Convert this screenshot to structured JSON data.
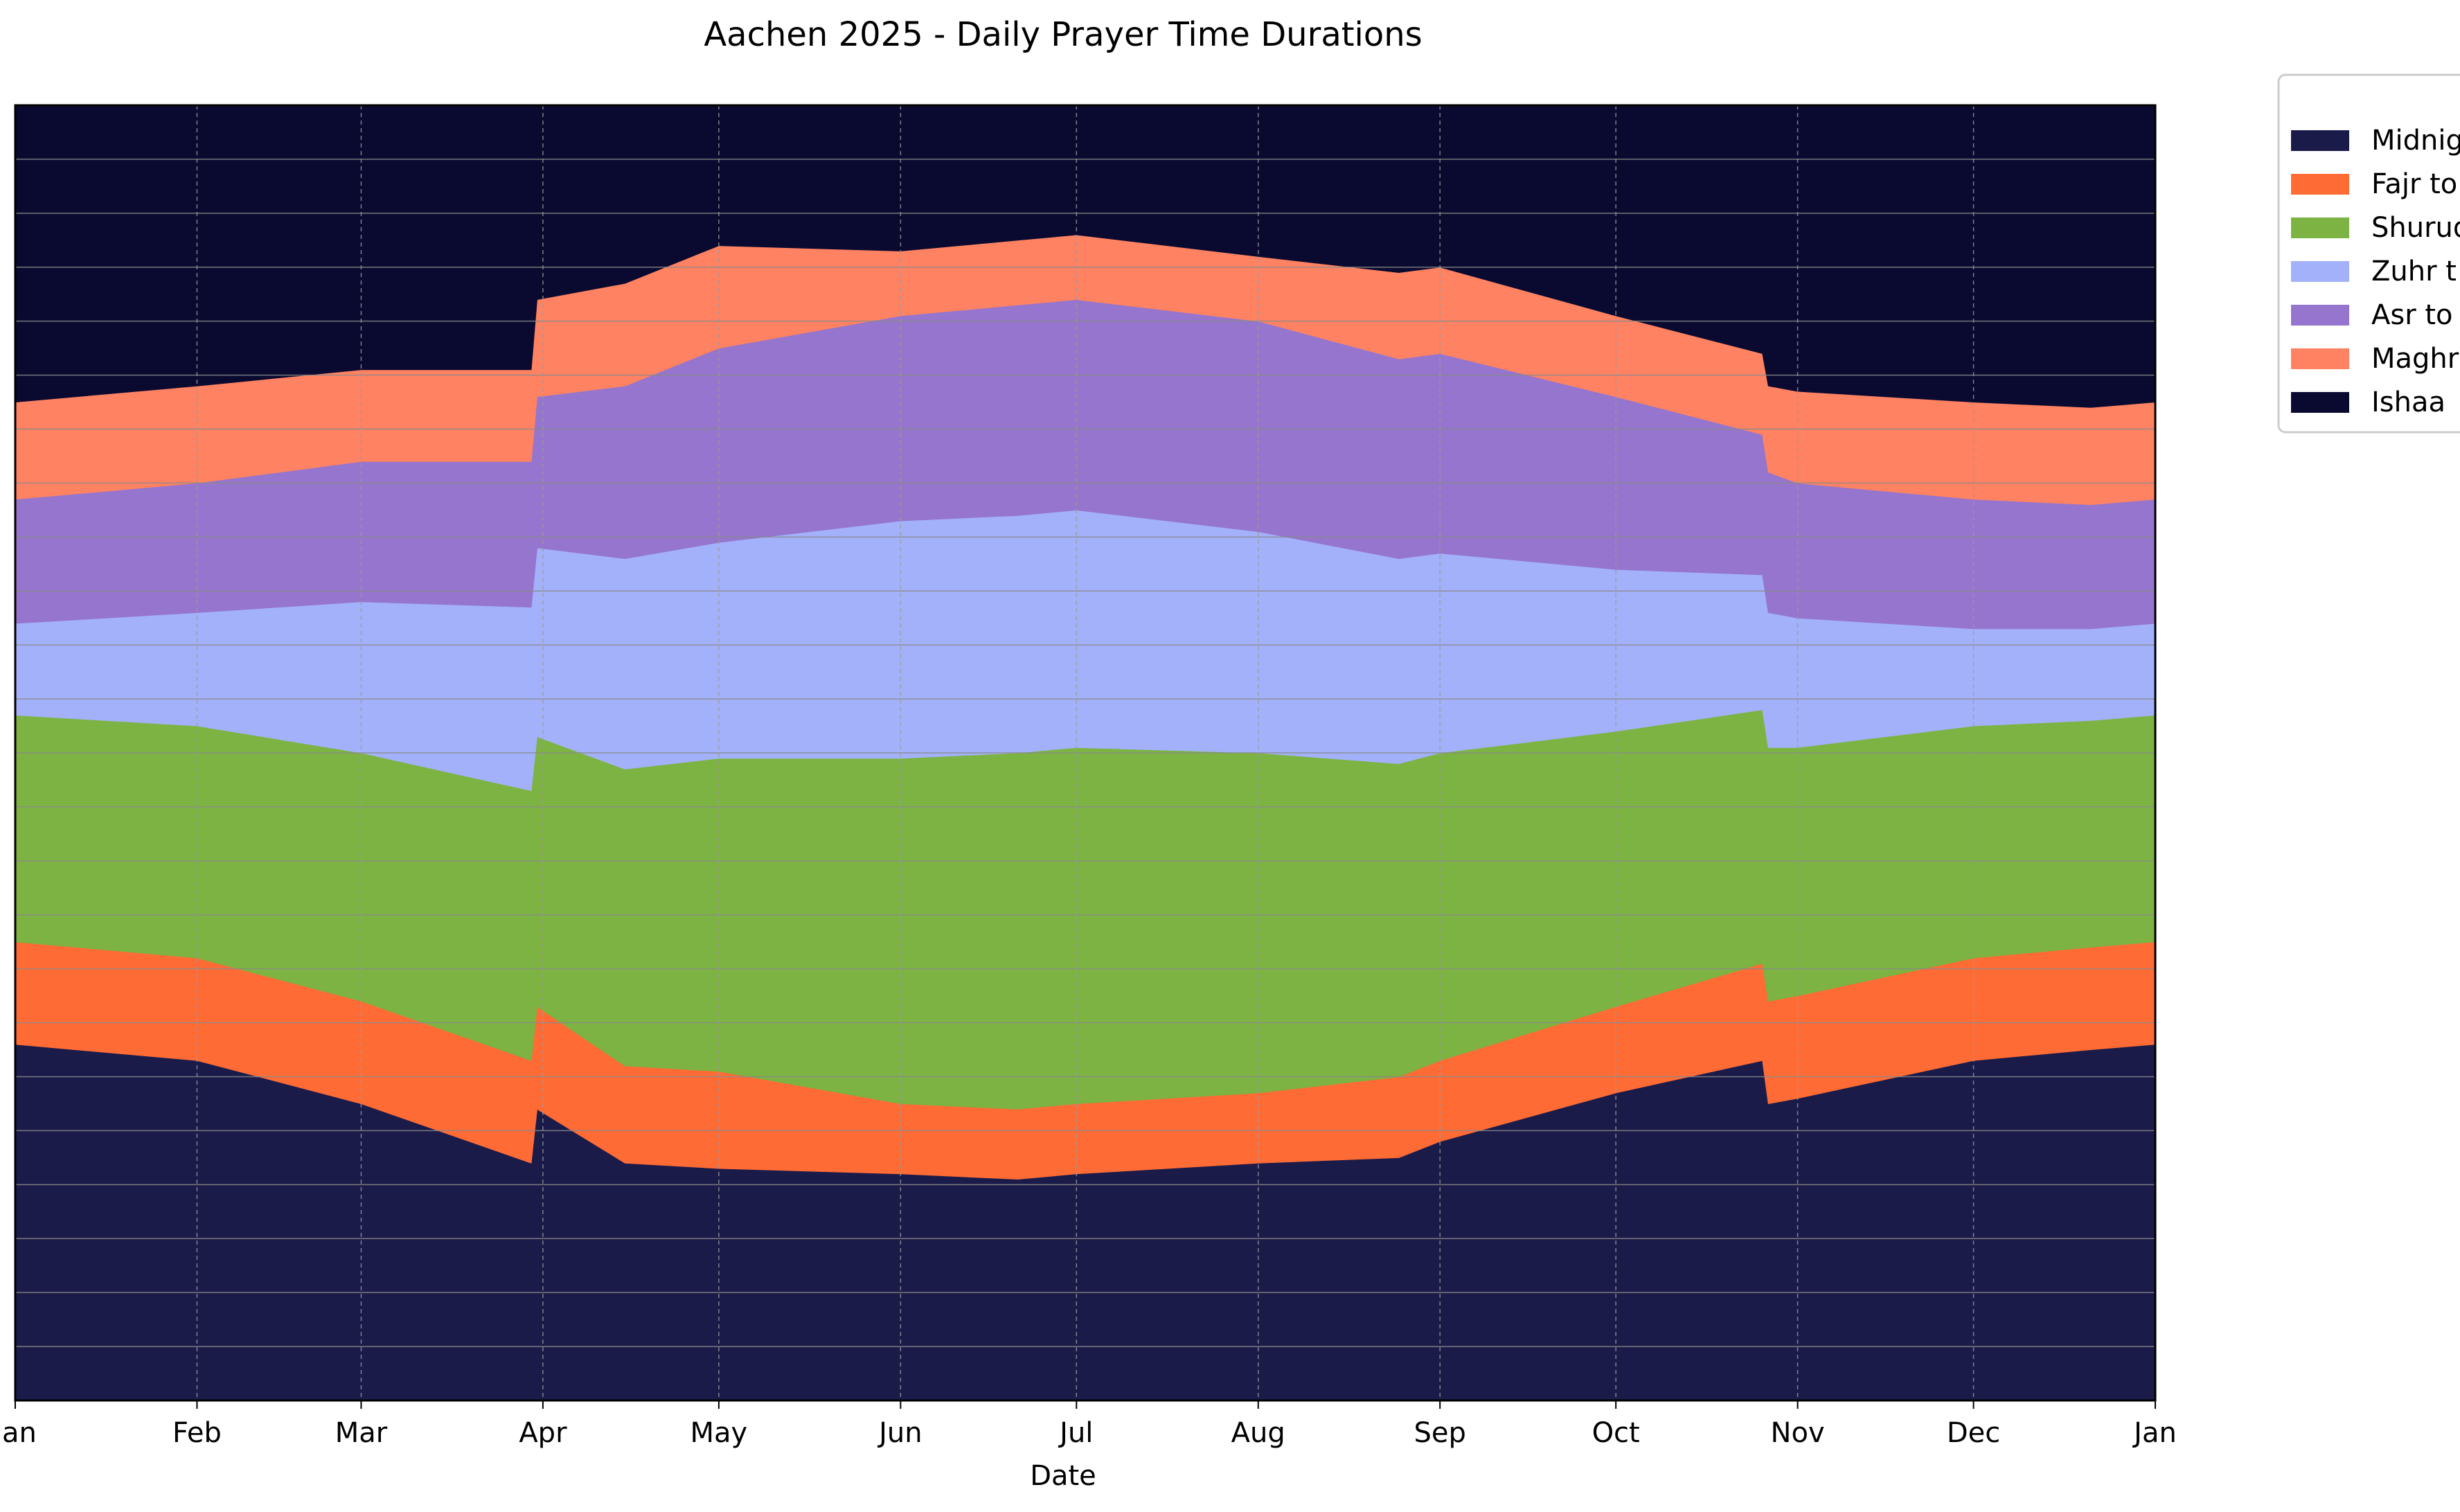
{
  "chart_data": {
    "type": "area",
    "title": "Aachen 2025 - Daily Prayer Time Durations",
    "xlabel": "Date",
    "ylabel": "",
    "stacked": true,
    "x_ticks": [
      "Jan",
      "Feb",
      "Mar",
      "Apr",
      "May",
      "Jun",
      "Jul",
      "Aug",
      "Sep",
      "Oct",
      "Nov",
      "Dec",
      "Jan"
    ],
    "x": [
      "2025-01-01",
      "2025-02-01",
      "2025-03-01",
      "2025-03-30",
      "2025-03-31",
      "2025-04-15",
      "2025-05-01",
      "2025-06-01",
      "2025-06-21",
      "2025-07-01",
      "2025-08-01",
      "2025-08-25",
      "2025-09-01",
      "2025-10-01",
      "2025-10-26",
      "2025-10-27",
      "2025-11-01",
      "2025-12-01",
      "2025-12-21",
      "2026-01-01"
    ],
    "ylim": [
      0,
      24
    ],
    "grid": true,
    "legend_position": "outside-right",
    "series": [
      {
        "name": "Midnig",
        "color": "#1b1b4a",
        "values": [
          6.6,
          6.3,
          5.5,
          4.4,
          5.4,
          4.4,
          4.3,
          4.2,
          4.1,
          4.2,
          4.4,
          4.5,
          4.8,
          5.7,
          6.3,
          5.5,
          5.6,
          6.3,
          6.5,
          6.6
        ]
      },
      {
        "name": "Fajr to",
        "color": "#ff6b35",
        "values": [
          1.9,
          1.9,
          1.9,
          1.9,
          1.9,
          1.8,
          1.8,
          1.3,
          1.3,
          1.3,
          1.3,
          1.5,
          1.5,
          1.6,
          1.8,
          1.9,
          1.9,
          1.9,
          1.9,
          1.9
        ]
      },
      {
        "name": "Shuruq",
        "color": "#7cb342",
        "values": [
          4.2,
          4.3,
          4.6,
          5.0,
          5.0,
          5.5,
          5.8,
          6.4,
          6.6,
          6.6,
          6.3,
          5.8,
          5.7,
          5.1,
          4.7,
          4.7,
          4.6,
          4.3,
          4.2,
          4.2
        ]
      },
      {
        "name": "Zuhr t",
        "color": "#a3b1fa",
        "values": [
          1.7,
          2.1,
          2.8,
          3.4,
          3.5,
          3.9,
          4.0,
          4.4,
          4.4,
          4.4,
          4.1,
          3.8,
          3.7,
          3.0,
          2.5,
          2.5,
          2.4,
          1.8,
          1.7,
          1.7
        ]
      },
      {
        "name": "Asr to",
        "color": "#9575cd",
        "values": [
          2.3,
          2.4,
          2.6,
          2.7,
          2.8,
          3.2,
          3.6,
          3.8,
          3.9,
          3.9,
          3.9,
          3.7,
          3.7,
          3.2,
          2.6,
          2.6,
          2.5,
          2.4,
          2.3,
          2.3
        ]
      },
      {
        "name": "Maghr",
        "color": "#ff8262",
        "values": [
          1.8,
          1.8,
          1.7,
          1.7,
          1.8,
          1.9,
          1.9,
          1.2,
          1.2,
          1.2,
          1.2,
          1.6,
          1.6,
          1.5,
          1.5,
          1.6,
          1.7,
          1.8,
          1.8,
          1.8
        ]
      },
      {
        "name": "Ishaa",
        "color": "#0a0a30",
        "values": [
          5.5,
          5.2,
          4.9,
          4.9,
          3.6,
          3.3,
          2.6,
          2.7,
          2.5,
          2.4,
          2.8,
          3.1,
          3.3,
          3.9,
          4.6,
          5.2,
          5.3,
          5.5,
          5.6,
          5.5
        ]
      }
    ]
  }
}
